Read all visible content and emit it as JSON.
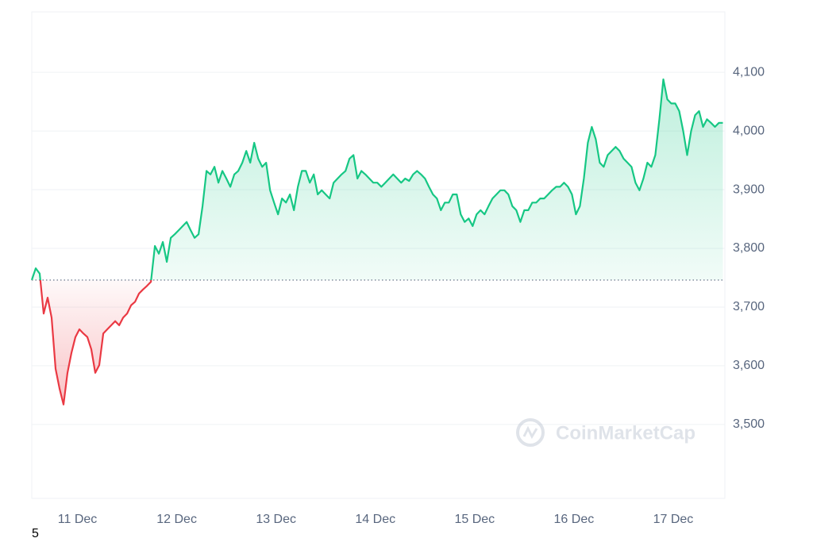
{
  "chart_data": {
    "type": "line",
    "watermark": "CoinMarketCap",
    "footnote": "5",
    "x": [
      10.54,
      10.58,
      10.62,
      10.66,
      10.7,
      10.74,
      10.78,
      10.82,
      10.86,
      10.9,
      10.94,
      10.98,
      11.02,
      11.06,
      11.1,
      11.14,
      11.18,
      11.22,
      11.26,
      11.3,
      11.34,
      11.38,
      11.42,
      11.46,
      11.5,
      11.54,
      11.58,
      11.62,
      11.66,
      11.7,
      11.74,
      11.78,
      11.82,
      11.86,
      11.9,
      11.94,
      11.98,
      12.02,
      12.06,
      12.1,
      12.14,
      12.18,
      12.22,
      12.26,
      12.3,
      12.34,
      12.38,
      12.42,
      12.46,
      12.5,
      12.54,
      12.58,
      12.62,
      12.66,
      12.7,
      12.74,
      12.78,
      12.82,
      12.86,
      12.9,
      12.94,
      12.98,
      13.02,
      13.06,
      13.1,
      13.14,
      13.18,
      13.22,
      13.26,
      13.3,
      13.34,
      13.38,
      13.42,
      13.46,
      13.5,
      13.54,
      13.58,
      13.62,
      13.66,
      13.7,
      13.74,
      13.78,
      13.82,
      13.86,
      13.9,
      13.94,
      13.98,
      14.02,
      14.06,
      14.1,
      14.14,
      14.18,
      14.22,
      14.26,
      14.3,
      14.34,
      14.38,
      14.42,
      14.46,
      14.5,
      14.54,
      14.58,
      14.62,
      14.66,
      14.7,
      14.74,
      14.78,
      14.82,
      14.86,
      14.9,
      14.94,
      14.98,
      15.02,
      15.06,
      15.1,
      15.14,
      15.18,
      15.22,
      15.26,
      15.3,
      15.34,
      15.38,
      15.42,
      15.46,
      15.5,
      15.54,
      15.58,
      15.62,
      15.66,
      15.7,
      15.74,
      15.78,
      15.82,
      15.86,
      15.9,
      15.94,
      15.98,
      16.02,
      16.06,
      16.1,
      16.14,
      16.18,
      16.22,
      16.26,
      16.3,
      16.34,
      16.38,
      16.42,
      16.46,
      16.5,
      16.54,
      16.58,
      16.62,
      16.66,
      16.7,
      16.74,
      16.78,
      16.82,
      16.86,
      16.9,
      16.94,
      16.98,
      17.02,
      17.06,
      17.1,
      17.14,
      17.18,
      17.22,
      17.26,
      17.3,
      17.34,
      17.38,
      17.42,
      17.46,
      17.5
    ],
    "values": [
      3746,
      3766,
      3757,
      3689,
      3716,
      3682,
      3595,
      3561,
      3534,
      3588,
      3622,
      3649,
      3662,
      3655,
      3649,
      3628,
      3588,
      3601,
      3655,
      3662,
      3669,
      3676,
      3669,
      3682,
      3689,
      3703,
      3709,
      3723,
      3730,
      3736,
      3743,
      3804,
      3791,
      3811,
      3777,
      3818,
      3824,
      3831,
      3838,
      3845,
      3831,
      3818,
      3824,
      3872,
      3932,
      3926,
      3939,
      3912,
      3932,
      3919,
      3905,
      3926,
      3932,
      3946,
      3966,
      3946,
      3980,
      3953,
      3939,
      3946,
      3899,
      3878,
      3858,
      3885,
      3878,
      3892,
      3865,
      3905,
      3932,
      3932,
      3912,
      3926,
      3892,
      3899,
      3892,
      3885,
      3912,
      3919,
      3926,
      3932,
      3953,
      3959,
      3919,
      3932,
      3926,
      3919,
      3912,
      3912,
      3905,
      3912,
      3919,
      3926,
      3919,
      3912,
      3919,
      3915,
      3926,
      3932,
      3926,
      3919,
      3905,
      3892,
      3885,
      3865,
      3878,
      3878,
      3892,
      3892,
      3858,
      3845,
      3851,
      3838,
      3858,
      3865,
      3858,
      3872,
      3885,
      3892,
      3899,
      3899,
      3892,
      3872,
      3865,
      3845,
      3865,
      3865,
      3878,
      3878,
      3885,
      3885,
      3892,
      3899,
      3905,
      3905,
      3912,
      3905,
      3892,
      3858,
      3872,
      3919,
      3980,
      4007,
      3986,
      3946,
      3939,
      3959,
      3966,
      3973,
      3966,
      3953,
      3946,
      3939,
      3912,
      3899,
      3919,
      3946,
      3939,
      3959,
      4020,
      4088,
      4054,
      4047,
      4047,
      4034,
      4000,
      3959,
      4000,
      4027,
      4034,
      4007,
      4020,
      4014,
      4007,
      4014,
      4014
    ],
    "baseline": 3746,
    "up_color": "#16c784",
    "down_color": "#ea3943",
    "xlim": [
      10.54,
      17.52
    ],
    "xticks": [
      {
        "value": 11,
        "label": "11 Dec"
      },
      {
        "value": 12,
        "label": "12 Dec"
      },
      {
        "value": 13,
        "label": "13 Dec"
      },
      {
        "value": 14,
        "label": "14 Dec"
      },
      {
        "value": 15,
        "label": "15 Dec"
      },
      {
        "value": 16,
        "label": "16 Dec"
      },
      {
        "value": 17,
        "label": "17 Dec"
      }
    ],
    "ylim": [
      3374,
      4203
    ],
    "yticks": [
      {
        "value": 3500,
        "label": "3,500"
      },
      {
        "value": 3600,
        "label": "3,600"
      },
      {
        "value": 3700,
        "label": "3,700"
      },
      {
        "value": 3800,
        "label": "3,800"
      },
      {
        "value": 3900,
        "label": "3,900"
      },
      {
        "value": 4000,
        "label": "4,000"
      },
      {
        "value": 4100,
        "label": "4,100"
      }
    ],
    "grid": true
  }
}
